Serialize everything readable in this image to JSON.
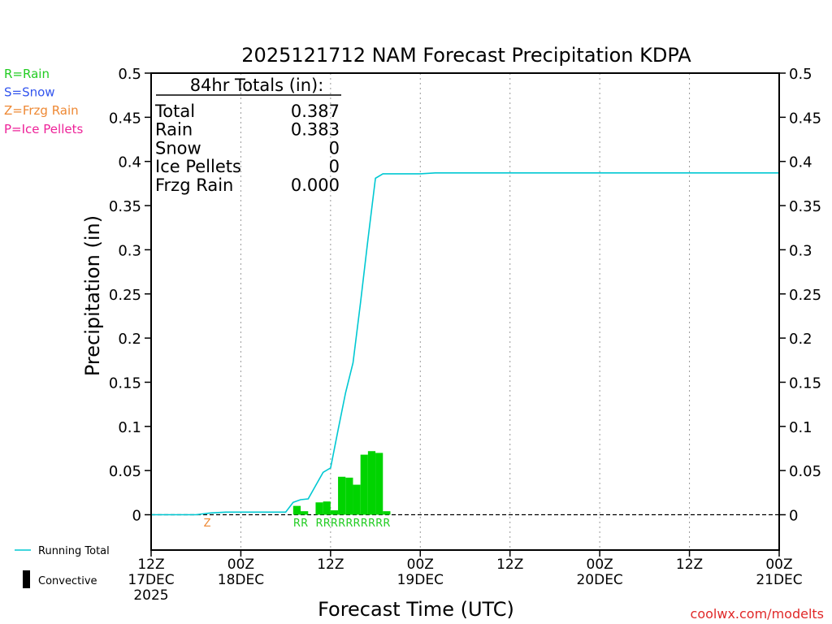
{
  "chart_data": {
    "type": "bar+line",
    "title": "2025121712 NAM Forecast Precipitation KDPA",
    "xlabel": "Forecast Time (UTC)",
    "ylabel": "Precipitation (in)",
    "ylim": [
      -0.04,
      0.5
    ],
    "yticks": [
      0,
      0.05,
      0.1,
      0.15,
      0.2,
      0.25,
      0.3,
      0.35,
      0.4,
      0.45,
      0.5
    ],
    "ytick_labels": [
      "0",
      "0.05",
      "0.1",
      "0.15",
      "0.2",
      "0.25",
      "0.3",
      "0.35",
      "0.4",
      "0.45",
      "0.5"
    ],
    "xlim_hours": [
      0,
      84
    ],
    "xticks": [
      {
        "hour": 0,
        "lines": [
          "12Z",
          "17DEC",
          "2025"
        ]
      },
      {
        "hour": 12,
        "lines": [
          "00Z",
          "18DEC"
        ]
      },
      {
        "hour": 24,
        "lines": [
          "12Z"
        ]
      },
      {
        "hour": 36,
        "lines": [
          "00Z",
          "19DEC"
        ]
      },
      {
        "hour": 48,
        "lines": [
          "12Z"
        ]
      },
      {
        "hour": 60,
        "lines": [
          "00Z",
          "20DEC"
        ]
      },
      {
        "hour": 72,
        "lines": [
          "12Z"
        ]
      },
      {
        "hour": 84,
        "lines": [
          "00Z",
          "21DEC"
        ]
      }
    ],
    "hourly_precip": {
      "bar_width_hours": 1,
      "points": [
        {
          "hour": 19,
          "value": 0.01
        },
        {
          "hour": 20,
          "value": 0.004
        },
        {
          "hour": 22,
          "value": 0.014
        },
        {
          "hour": 23,
          "value": 0.015
        },
        {
          "hour": 24,
          "value": 0.005
        },
        {
          "hour": 25,
          "value": 0.043
        },
        {
          "hour": 26,
          "value": 0.042
        },
        {
          "hour": 27,
          "value": 0.034
        },
        {
          "hour": 28,
          "value": 0.068
        },
        {
          "hour": 29,
          "value": 0.072
        },
        {
          "hour": 30,
          "value": 0.07
        },
        {
          "hour": 31,
          "value": 0.004
        }
      ]
    },
    "running_total": {
      "name": "Running Total",
      "x": [
        0,
        6,
        8,
        10,
        12,
        15,
        18,
        19,
        20,
        21,
        22,
        23,
        24,
        25,
        26,
        27,
        28,
        29,
        30,
        31,
        36,
        38,
        84
      ],
      "y": [
        0.0,
        0.0,
        0.002,
        0.003,
        0.003,
        0.003,
        0.003,
        0.014,
        0.017,
        0.018,
        0.033,
        0.048,
        0.053,
        0.096,
        0.138,
        0.172,
        0.24,
        0.312,
        0.381,
        0.386,
        0.386,
        0.387,
        0.387
      ]
    },
    "ptype_markers": [
      {
        "hour": 7,
        "type": "Z"
      },
      {
        "hour": 19,
        "type": "R"
      },
      {
        "hour": 20,
        "type": "R"
      },
      {
        "hour": 22,
        "type": "R"
      },
      {
        "hour": 23,
        "type": "R"
      },
      {
        "hour": 24,
        "type": "R"
      },
      {
        "hour": 25,
        "type": "R"
      },
      {
        "hour": 26,
        "type": "R"
      },
      {
        "hour": 27,
        "type": "R"
      },
      {
        "hour": 28,
        "type": "R"
      },
      {
        "hour": 29,
        "type": "R"
      },
      {
        "hour": 30,
        "type": "R"
      },
      {
        "hour": 31,
        "type": "R"
      }
    ],
    "totals_box": {
      "header": "84hr Totals (in):",
      "rows": [
        {
          "label": "Total",
          "value": "0.387"
        },
        {
          "label": "Rain",
          "value": "0.383"
        },
        {
          "label": "Snow",
          "value": "0"
        },
        {
          "label": "Ice Pellets",
          "value": "0"
        },
        {
          "label": "Frzg Rain",
          "value": "0.000"
        }
      ]
    },
    "ptype_legend": [
      {
        "text": "R=Rain",
        "color": "#22cc22"
      },
      {
        "text": "S=Snow",
        "color": "#3355ee"
      },
      {
        "text": "Z=Frzg Rain",
        "color": "#ee8833"
      },
      {
        "text": "P=Ice Pellets",
        "color": "#ee2299"
      }
    ],
    "series_legend": [
      {
        "text": "Running Total",
        "kind": "line",
        "color": "#00c8d2"
      },
      {
        "text": "Convective",
        "kind": "bar",
        "color": "#000000"
      }
    ],
    "colors": {
      "rain": "#00d400",
      "total_line": "#00c8d2",
      "zfr": "#ee8833",
      "rain_label": "#22cc22"
    }
  },
  "credit": "coolwx.com/modelts"
}
